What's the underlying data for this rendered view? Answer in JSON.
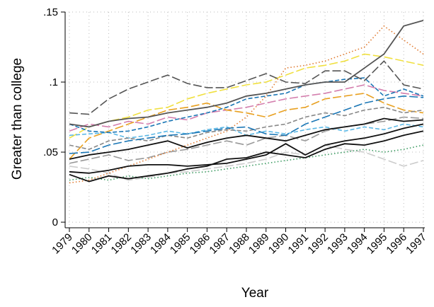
{
  "chart_data": {
    "type": "line",
    "xlabel": "Year",
    "ylabel": "Greater than college",
    "x": [
      1979,
      1980,
      1981,
      1982,
      1983,
      1984,
      1985,
      1986,
      1987,
      1988,
      1989,
      1990,
      1991,
      1992,
      1993,
      1994,
      1995,
      1996,
      1997
    ],
    "xlim": [
      1979,
      1997
    ],
    "xticks": [
      1979,
      1980,
      1981,
      1982,
      1983,
      1984,
      1985,
      1986,
      1987,
      1988,
      1989,
      1990,
      1991,
      1992,
      1993,
      1994,
      1995,
      1996,
      1997
    ],
    "ylim": [
      -0.004,
      0.15
    ],
    "yticks": [
      0,
      {
        "value": 0.05,
        "label": ".05"
      },
      {
        "value": 0.1,
        "label": ".1"
      },
      {
        "value": 0.15,
        "label": ".15"
      }
    ],
    "grid": true,
    "series": [
      {
        "color": "#999999",
        "dash": "longdash",
        "values": [
          0.042,
          0.045,
          0.048,
          0.044,
          0.046,
          0.05,
          0.052,
          0.055,
          0.058,
          0.055,
          0.06,
          0.062,
          0.058,
          0.065,
          0.068,
          0.07,
          0.072,
          0.075,
          0.074
        ]
      },
      {
        "color": "#cccccc",
        "dash": "longdash",
        "values": [
          0.04,
          0.038,
          0.035,
          0.03,
          0.032,
          0.035,
          0.036,
          0.038,
          0.04,
          0.042,
          0.045,
          0.05,
          0.048,
          0.055,
          0.052,
          0.05,
          0.045,
          0.04,
          0.044
        ]
      },
      {
        "color": "#3a9a60",
        "dash": "dot",
        "values": [
          0.03,
          0.032,
          0.03,
          0.033,
          0.031,
          0.033,
          0.035,
          0.036,
          0.038,
          0.04,
          0.042,
          0.044,
          0.046,
          0.048,
          0.05,
          0.052,
          0.05,
          0.052,
          0.055
        ]
      },
      {
        "color": "#e07a30",
        "dash": "dot",
        "values": [
          0.028,
          0.03,
          0.035,
          0.04,
          0.045,
          0.05,
          0.055,
          0.06,
          0.065,
          0.075,
          0.09,
          0.11,
          0.112,
          0.115,
          0.12,
          0.125,
          0.14,
          0.13,
          0.12
        ]
      },
      {
        "color": "#f0e040",
        "dash": "longdash",
        "values": [
          0.06,
          0.068,
          0.072,
          0.075,
          0.08,
          0.082,
          0.088,
          0.092,
          0.095,
          0.098,
          0.1,
          0.105,
          0.11,
          0.112,
          0.115,
          0.12,
          0.118,
          0.115,
          0.112
        ]
      },
      {
        "color": "#d47fae",
        "dash": "longdash",
        "values": [
          0.065,
          0.07,
          0.068,
          0.072,
          0.07,
          0.075,
          0.073,
          0.078,
          0.08,
          0.082,
          0.085,
          0.088,
          0.09,
          0.092,
          0.095,
          0.098,
          0.094,
          0.092,
          0.09
        ]
      },
      {
        "color": "#e8a020",
        "dash": "longdash",
        "values": [
          0.045,
          0.06,
          0.065,
          0.07,
          0.075,
          0.08,
          0.082,
          0.085,
          0.08,
          0.078,
          0.075,
          0.08,
          0.082,
          0.088,
          0.09,
          0.092,
          0.085,
          0.08,
          0.078
        ]
      },
      {
        "color": "#5bb8e6",
        "dash": "dash",
        "values": [
          0.062,
          0.063,
          0.064,
          0.06,
          0.062,
          0.065,
          0.063,
          0.066,
          0.068,
          0.062,
          0.065,
          0.063,
          0.066,
          0.068,
          0.065,
          0.068,
          0.066,
          0.07,
          0.068
        ]
      },
      {
        "color": "#888888",
        "dash": "dash",
        "values": [
          0.055,
          0.052,
          0.058,
          0.06,
          0.058,
          0.062,
          0.06,
          0.064,
          0.066,
          0.065,
          0.068,
          0.07,
          0.075,
          0.078,
          0.076,
          0.08,
          0.082,
          0.078,
          0.08
        ]
      },
      {
        "color": "#1a76b5",
        "dash": "dash",
        "values": [
          0.07,
          0.065,
          0.064,
          0.065,
          0.068,
          0.072,
          0.075,
          0.078,
          0.082,
          0.088,
          0.09,
          0.092,
          0.098,
          0.1,
          0.102,
          0.103,
          0.09,
          0.095,
          0.09
        ]
      },
      {
        "color": "#1a76b5",
        "dash": "longdash",
        "values": [
          0.049,
          0.05,
          0.055,
          0.058,
          0.06,
          0.062,
          0.063,
          0.065,
          0.067,
          0.068,
          0.063,
          0.062,
          0.07,
          0.075,
          0.08,
          0.085,
          0.088,
          0.09,
          0.089
        ]
      },
      {
        "color": "#555555",
        "dash": "longdash",
        "values": [
          0.078,
          0.077,
          0.088,
          0.095,
          0.1,
          0.105,
          0.099,
          0.096,
          0.096,
          0.101,
          0.106,
          0.1,
          0.099,
          0.108,
          0.108,
          0.101,
          0.115,
          0.098,
          0.095
        ]
      },
      {
        "color": "#555555",
        "dash": "solid",
        "values": [
          0.07,
          0.068,
          0.072,
          0.074,
          0.075,
          0.078,
          0.08,
          0.082,
          0.085,
          0.09,
          0.092,
          0.095,
          0.098,
          0.1,
          0.1,
          0.11,
          0.12,
          0.14,
          0.144
        ]
      },
      {
        "color": "#111111",
        "dash": "solid",
        "values": [
          0.045,
          0.048,
          0.05,
          0.052,
          0.055,
          0.058,
          0.053,
          0.057,
          0.06,
          0.062,
          0.06,
          0.058,
          0.062,
          0.066,
          0.068,
          0.07,
          0.074,
          0.072,
          0.073
        ]
      },
      {
        "color": "#111111",
        "dash": "solid",
        "values": [
          0.036,
          0.035,
          0.037,
          0.04,
          0.041,
          0.041,
          0.04,
          0.041,
          0.042,
          0.045,
          0.048,
          0.056,
          0.048,
          0.055,
          0.058,
          0.06,
          0.063,
          0.067,
          0.07
        ]
      },
      {
        "color": "#111111",
        "dash": "solid",
        "values": [
          0.034,
          0.029,
          0.033,
          0.031,
          0.033,
          0.035,
          0.038,
          0.04,
          0.045,
          0.046,
          0.05,
          0.048,
          0.046,
          0.052,
          0.056,
          0.055,
          0.058,
          0.062,
          0.065
        ]
      }
    ]
  }
}
